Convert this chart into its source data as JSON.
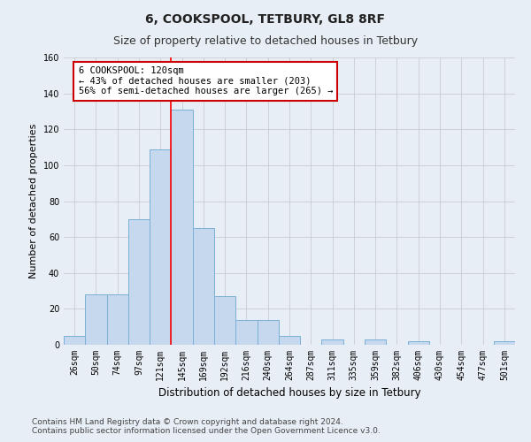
{
  "title_line1": "6, COOKSPOOL, TETBURY, GL8 8RF",
  "title_line2": "Size of property relative to detached houses in Tetbury",
  "xlabel": "Distribution of detached houses by size in Tetbury",
  "ylabel": "Number of detached properties",
  "categories": [
    "26sqm",
    "50sqm",
    "74sqm",
    "97sqm",
    "121sqm",
    "145sqm",
    "169sqm",
    "192sqm",
    "216sqm",
    "240sqm",
    "264sqm",
    "287sqm",
    "311sqm",
    "335sqm",
    "359sqm",
    "382sqm",
    "406sqm",
    "430sqm",
    "454sqm",
    "477sqm",
    "501sqm"
  ],
  "values": [
    5,
    28,
    28,
    70,
    109,
    131,
    65,
    27,
    14,
    14,
    5,
    0,
    3,
    0,
    3,
    0,
    2,
    0,
    0,
    0,
    2
  ],
  "bar_color": "#c5d8ee",
  "bar_edge_color": "#7aafd4",
  "red_line_x": 4.5,
  "annotation_text": "6 COOKSPOOL: 120sqm\n← 43% of detached houses are smaller (203)\n56% of semi-detached houses are larger (265) →",
  "annotation_box_color": "#ffffff",
  "annotation_box_edge": "#cc0000",
  "ylim": [
    0,
    160
  ],
  "yticks": [
    0,
    20,
    40,
    60,
    80,
    100,
    120,
    140,
    160
  ],
  "grid_color": "#c8cdd4",
  "background_color": "#e8eef5",
  "fig_facecolor": "#e8eef5",
  "footer_line1": "Contains HM Land Registry data © Crown copyright and database right 2024.",
  "footer_line2": "Contains public sector information licensed under the Open Government Licence v3.0.",
  "title_fontsize": 10,
  "subtitle_fontsize": 9,
  "xlabel_fontsize": 8.5,
  "ylabel_fontsize": 8,
  "tick_fontsize": 7,
  "annotation_fontsize": 7.5,
  "footer_fontsize": 6.5
}
